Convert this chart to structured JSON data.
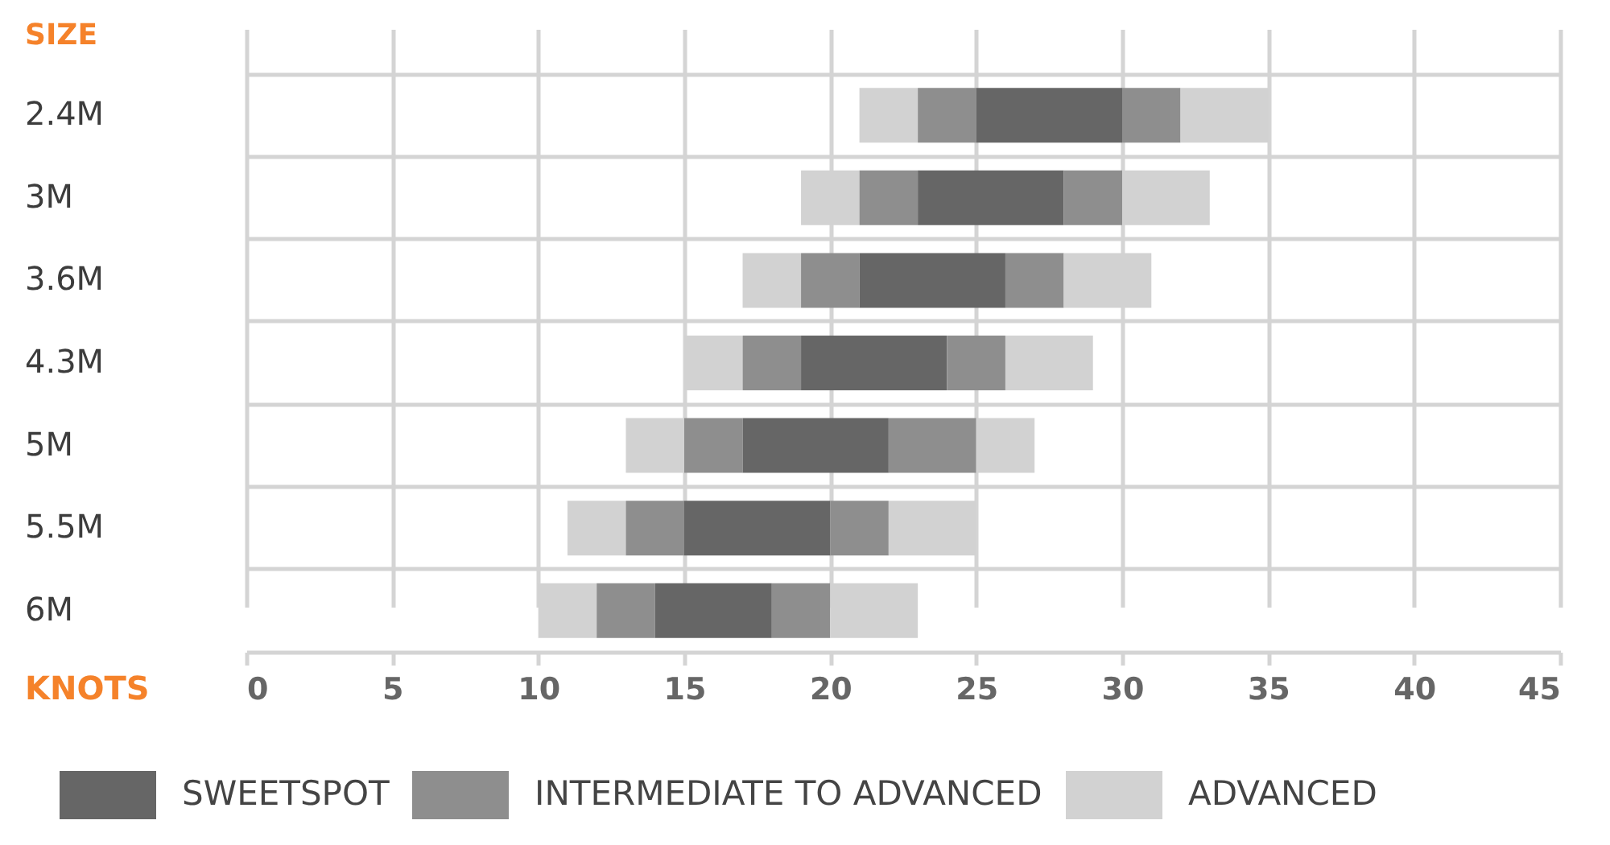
{
  "chart_data": {
    "type": "bar",
    "orientation": "horizontal",
    "ylabel": "SIZE",
    "xlabel": "KNOTS",
    "categories": [
      "2.4M",
      "3M",
      "3.6M",
      "4.3M",
      "5M",
      "5.5M",
      "6M"
    ],
    "series": [
      {
        "name": "ADVANCED",
        "color": "#d2d2d2",
        "base": [
          21,
          19,
          17,
          15,
          13,
          11,
          10
        ],
        "values": [
          2,
          2,
          2,
          2,
          2,
          2,
          2
        ]
      },
      {
        "name": "INTERMEDIATE TO ADVANCED",
        "color": "#8e8e8e",
        "base": [
          23,
          21,
          19,
          17,
          15,
          13,
          12
        ],
        "values": [
          2,
          2,
          2,
          2,
          2,
          2,
          2
        ]
      },
      {
        "name": "SWEETSPOT",
        "color": "#666666",
        "base": [
          25,
          23,
          21,
          19,
          17,
          15,
          14
        ],
        "values": [
          5,
          5,
          5,
          5,
          5,
          5,
          4
        ]
      },
      {
        "color": "#8e8e8e",
        "base": [
          30,
          28,
          26,
          24,
          22,
          20,
          18
        ],
        "values": [
          2,
          2,
          2,
          2,
          3,
          2,
          2
        ]
      },
      {
        "color": "#d2d2d2",
        "base": [
          32,
          30,
          28,
          26,
          25,
          22,
          20
        ],
        "values": [
          3,
          3,
          3,
          3,
          2,
          3,
          3
        ]
      }
    ],
    "xlim": [
      0,
      45
    ],
    "xticks": [
      0,
      5,
      10,
      15,
      20,
      25,
      30,
      35,
      40,
      45
    ],
    "grid": true,
    "legend": "bottom"
  }
}
